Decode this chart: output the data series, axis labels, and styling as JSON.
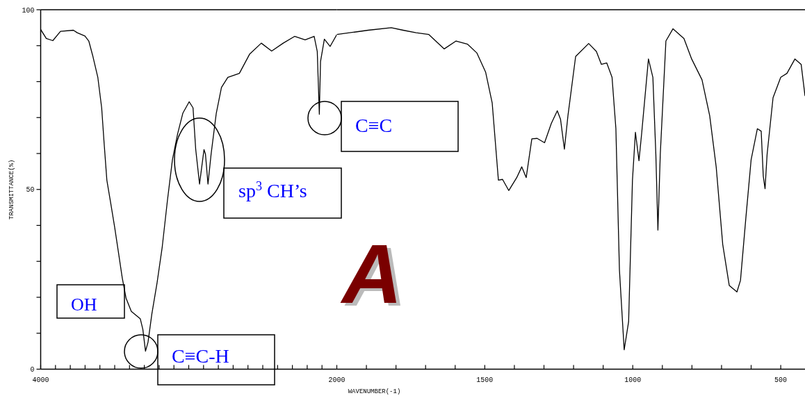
{
  "chart_data": [
    {
      "type": "line",
      "ylabel": "TRANSMITTANCE(%)",
      "xlim": [
        4000,
        2000
      ],
      "ylim": [
        0,
        100
      ],
      "xticks": [
        4000,
        {
          "value": 3900,
          "label": null
        },
        {
          "value": 3800,
          "label": null
        },
        {
          "value": 3700,
          "label": null
        },
        {
          "value": 3600,
          "label": null
        },
        {
          "value": 3500,
          "label": null
        },
        {
          "value": 3400,
          "label": null
        },
        {
          "value": 3300,
          "label": null
        },
        {
          "value": 3200,
          "label": null
        },
        {
          "value": 3100,
          "label": null
        },
        {
          "value": 3000,
          "label": null
        },
        {
          "value": 2900,
          "label": null
        },
        {
          "value": 2800,
          "label": null
        },
        {
          "value": 2700,
          "label": null
        },
        {
          "value": 2600,
          "label": null
        },
        {
          "value": 2500,
          "label": null
        },
        {
          "value": 2400,
          "label": null
        },
        {
          "value": 2300,
          "label": null
        },
        {
          "value": 2200,
          "label": null
        },
        {
          "value": 2100,
          "label": null
        },
        2000
      ],
      "yticks": [
        0,
        {
          "value": 10,
          "label": null
        },
        {
          "value": 20,
          "label": null
        },
        {
          "value": 30,
          "label": null
        },
        {
          "value": 40,
          "label": null
        },
        50,
        {
          "value": 60,
          "label": null
        },
        {
          "value": 70,
          "label": null
        },
        {
          "value": 80,
          "label": null
        },
        {
          "value": 90,
          "label": null
        },
        100
      ],
      "grid": false,
      "marker": "none",
      "line_style": "solid",
      "series": [
        {
          "color": "#000000",
          "x": [
            4000,
            3962,
            3918,
            3866,
            3779,
            3753,
            3701,
            3675,
            3649,
            3614,
            3588,
            3571,
            3553,
            3527,
            3501,
            3475,
            3449,
            3423,
            3388,
            3327,
            3310,
            3292,
            3275,
            3249,
            3214,
            3179,
            3144,
            3110,
            3075,
            3040,
            2997,
            2971,
            2953,
            2927,
            2897,
            2887,
            2870,
            2849,
            2814,
            2779,
            2736,
            2658,
            2588,
            2510,
            2440,
            2362,
            2284,
            2214,
            2153,
            2132,
            2118,
            2110,
            2084,
            2045,
            2000
          ],
          "values": [
            94.5,
            92,
            91.4,
            94,
            94.3,
            93.6,
            92.7,
            91.3,
            87.3,
            81.2,
            72.7,
            62.6,
            52.6,
            46.2,
            39.7,
            32.6,
            25.4,
            19.7,
            16.1,
            14,
            11.1,
            5,
            7.5,
            15.4,
            24,
            34,
            46.9,
            58.3,
            65.5,
            71.2,
            74.4,
            72.7,
            61.2,
            51.5,
            61.1,
            59.8,
            51.5,
            59.8,
            71.2,
            78.4,
            81.2,
            82.3,
            87.7,
            90.7,
            88.5,
            90.7,
            92.6,
            91.6,
            92.6,
            88.4,
            70.9,
            85.6,
            91.8,
            89.8,
            93.1
          ]
        }
      ],
      "annotations": [
        "C≡C",
        "sp$^{3}$ CH’s",
        "C≡C-H",
        "OH"
      ]
    },
    {
      "type": "line",
      "xlabel": "WAVENUMBER(-1)",
      "xlim": [
        2000,
        418
      ],
      "ylim": [
        0,
        100
      ],
      "tick_labels": "x",
      "xticks": [
        {
          "value": 1900,
          "label": null
        },
        {
          "value": 1800,
          "label": null
        },
        {
          "value": 1700,
          "label": null
        },
        {
          "value": 1600,
          "label": null
        },
        1500,
        {
          "value": 1400,
          "label": null
        },
        {
          "value": 1300,
          "label": null
        },
        {
          "value": 1200,
          "label": null
        },
        {
          "value": 1100,
          "label": null
        },
        1000,
        {
          "value": 900,
          "label": null
        },
        {
          "value": 800,
          "label": null
        },
        {
          "value": 700,
          "label": null
        },
        {
          "value": 600,
          "label": null
        },
        500
      ],
      "grid": false,
      "marker": "none",
      "line_style": "solid",
      "series": [
        {
          "color": "#000000",
          "x": [
            2000,
            1894,
            1816,
            1776,
            1732,
            1689,
            1637,
            1597,
            1558,
            1527,
            1497,
            1475,
            1454,
            1440,
            1419,
            1392,
            1375,
            1360,
            1341,
            1323,
            1298,
            1275,
            1255,
            1244,
            1231,
            1219,
            1193,
            1149,
            1123,
            1106,
            1088,
            1070,
            1057,
            1045,
            1029,
            1014,
            1001,
            991,
            979,
            970,
            947,
            932,
            922,
            915,
            907,
            888,
            864,
            827,
            801,
            766,
            740,
            718,
            696,
            674,
            648,
            636,
            618,
            600,
            579,
            566,
            559,
            553,
            546,
            526,
            500,
            479,
            452,
            431,
            418
          ],
          "values": [
            93.1,
            94.3,
            95,
            94.3,
            93.6,
            93.1,
            89.1,
            91.3,
            90.4,
            88,
            82.6,
            74.1,
            52.6,
            52.8,
            49.7,
            53.3,
            56.3,
            53.3,
            64.1,
            64.2,
            63,
            68.4,
            71.9,
            69.5,
            61.2,
            70.5,
            87,
            90.6,
            88.4,
            84.8,
            85.2,
            81.2,
            66.9,
            27.6,
            5.4,
            13.2,
            52.6,
            65.9,
            58,
            65.5,
            86.3,
            81.2,
            59.8,
            38.7,
            59.8,
            91.3,
            94.7,
            92,
            86.3,
            80.5,
            70.5,
            56.2,
            34.7,
            23.3,
            21.5,
            24.7,
            41.9,
            58.3,
            66.9,
            66.2,
            53.7,
            50.2,
            59.8,
            75.5,
            81.2,
            82.3,
            86.3,
            84.8,
            76
          ]
        }
      ],
      "annotations": [
        "A"
      ]
    }
  ]
}
